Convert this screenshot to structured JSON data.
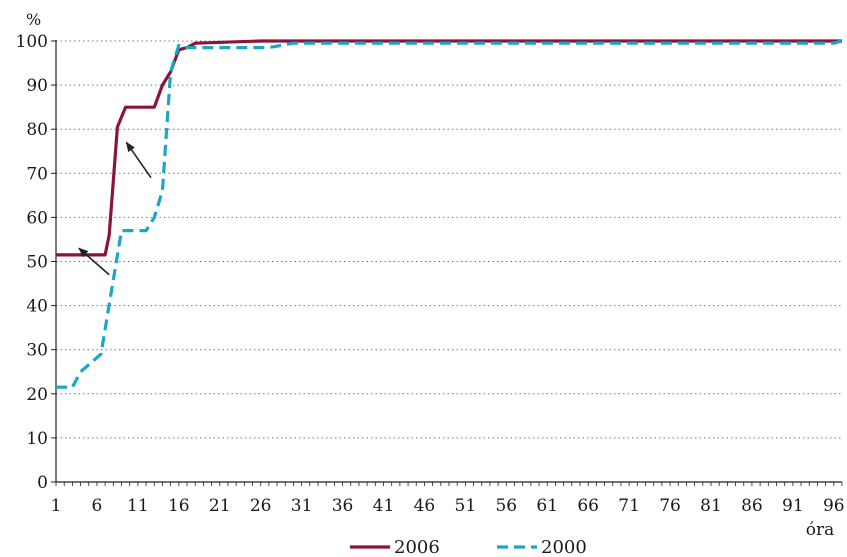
{
  "chart_data": {
    "type": "line",
    "y_unit": "%",
    "xlabel": "óra",
    "ylabel": "",
    "xlim": [
      1,
      97
    ],
    "ylim": [
      0,
      100
    ],
    "y_ticks": [
      0,
      10,
      20,
      30,
      40,
      50,
      60,
      70,
      80,
      90,
      100
    ],
    "x_ticks": [
      1,
      6,
      11,
      16,
      21,
      26,
      31,
      36,
      41,
      46,
      51,
      56,
      61,
      66,
      71,
      76,
      81,
      86,
      91,
      96
    ],
    "grid": "horizontal dotted",
    "legend_position": "bottom-center",
    "series": [
      {
        "name": "2006",
        "color": "#8a1538",
        "style": "solid",
        "points": [
          [
            1,
            51.5
          ],
          [
            7,
            51.5
          ],
          [
            7.5,
            56
          ],
          [
            8.5,
            80.5
          ],
          [
            9.5,
            85
          ],
          [
            13,
            85
          ],
          [
            14,
            90
          ],
          [
            15,
            93
          ],
          [
            16,
            98
          ],
          [
            17,
            98.5
          ],
          [
            18,
            99.5
          ],
          [
            26,
            100
          ],
          [
            97,
            100
          ]
        ]
      },
      {
        "name": "2000",
        "color": "#1aa6c4",
        "style": "dashed",
        "points": [
          [
            1,
            21.5
          ],
          [
            3,
            21.5
          ],
          [
            4,
            25
          ],
          [
            6.5,
            29
          ],
          [
            9,
            57
          ],
          [
            12,
            57
          ],
          [
            13,
            60
          ],
          [
            14,
            66
          ],
          [
            15,
            93
          ],
          [
            16,
            99
          ],
          [
            16.5,
            98.5
          ],
          [
            27,
            98.5
          ],
          [
            30,
            99.5
          ],
          [
            96,
            99.5
          ],
          [
            97,
            100
          ]
        ]
      }
    ],
    "annotations": [
      {
        "type": "arrow",
        "from": [
          7.5,
          47
        ],
        "to": [
          3.8,
          53
        ]
      },
      {
        "type": "arrow",
        "from": [
          12.6,
          69
        ],
        "to": [
          9.6,
          77
        ]
      }
    ]
  }
}
